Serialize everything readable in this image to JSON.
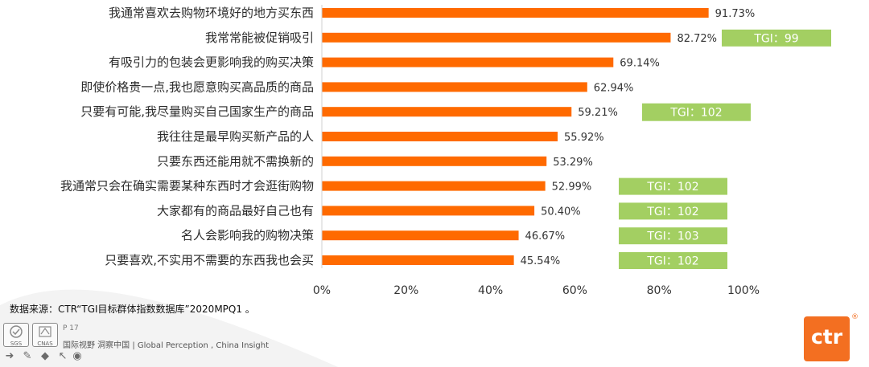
{
  "chart_data": {
    "type": "bar",
    "orientation": "horizontal",
    "categories": [
      "我通常喜欢去购物环境好的地方买东西",
      "我常常能被促销吸引",
      "有吸引力的包装会更影响我的购买决策",
      "即使价格贵一点,我也愿意购买高品质的商品",
      "只要有可能,我尽量购买自己国家生产的商品",
      "我往往是最早购买新产品的人",
      "只要东西还能用就不需换新的",
      "我通常只会在确实需要某种东西时才会逛街购物",
      "大家都有的商品最好自己也有",
      "名人会影响我的购物决策",
      "只要喜欢,不实用不需要的东西我也会买"
    ],
    "values": [
      91.73,
      82.72,
      69.14,
      62.94,
      59.21,
      55.92,
      53.29,
      52.99,
      50.4,
      46.67,
      45.54
    ],
    "value_labels": [
      "91.73%",
      "82.72%",
      "69.14%",
      "62.94%",
      "59.21%",
      "55.92%",
      "53.29%",
      "52.99%",
      "50.40%",
      "46.67%",
      "45.54%"
    ],
    "xlim": [
      0,
      100
    ],
    "x_ticks": [
      "0%",
      "20%",
      "40%",
      "60%",
      "80%",
      "100%"
    ],
    "bar_color": "#ff6a00",
    "grid": false,
    "legend": "none",
    "annotations": [
      {
        "row": 1,
        "text": "TGI：99"
      },
      {
        "row": 4,
        "text": "TGI：102"
      },
      {
        "row": 7,
        "text": "TGI：102"
      },
      {
        "row": 8,
        "text": "TGI：102"
      },
      {
        "row": 9,
        "text": "TGI：103"
      },
      {
        "row": 10,
        "text": "TGI：102"
      }
    ],
    "annotation_color": "#a3cf62"
  },
  "footer": {
    "source": "数据来源：CTR“TGI目标群体指数数据库”2020MPQ1 。",
    "page": "P 17",
    "slogan": "国际视野  洞察中国 |  Global Perception , China Insight",
    "cert1": "SGS",
    "cert2": "CNAS"
  },
  "logo": {
    "text": "ctr",
    "mark": "®",
    "color": "#f36f21"
  }
}
